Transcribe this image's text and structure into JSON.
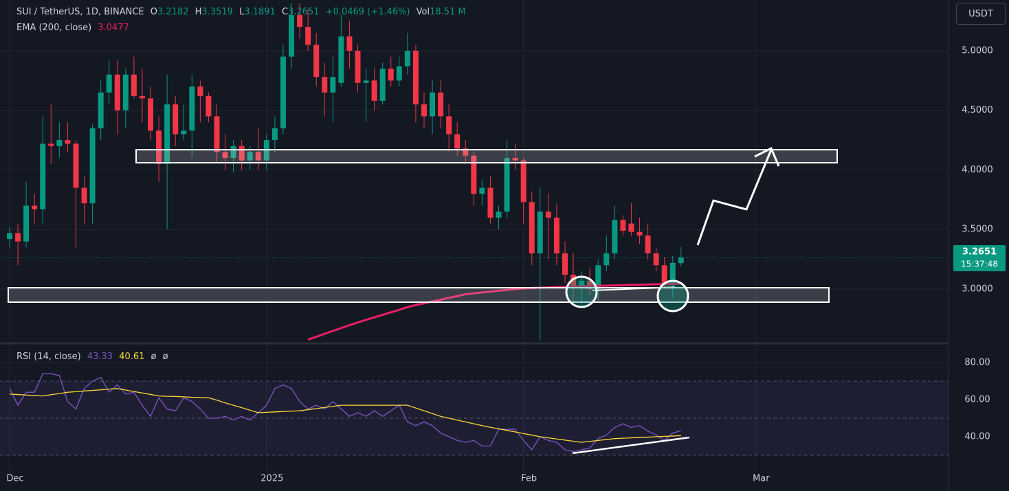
{
  "chart_data": [
    {
      "type": "candlestick",
      "title": "SUI / TetherUS, 1D, BINANCE",
      "ohlc_labels": [
        "O",
        "H",
        "L",
        "C"
      ],
      "change_text": "+0.0469 (+1.46%)",
      "volume_label": "Vol",
      "volume_text": "18.51 M",
      "currency": "USDT",
      "countdown": "15:37:48",
      "up_color": "#089981",
      "down_color": "#f23645",
      "grid": true,
      "x": [
        0,
        1,
        2,
        3,
        4,
        5,
        6,
        7,
        8,
        9,
        10,
        11,
        12,
        13,
        14,
        15,
        16,
        17,
        18,
        19,
        20,
        21,
        22,
        23,
        24,
        25,
        26,
        27,
        28,
        29,
        30,
        31,
        32,
        33,
        34,
        35,
        36,
        37,
        38,
        39,
        40,
        41,
        42,
        43,
        44,
        45,
        46,
        47,
        48,
        49,
        50,
        51,
        52,
        53,
        54,
        55,
        56,
        57,
        58,
        59,
        60,
        61,
        62,
        63,
        64,
        65,
        66,
        67,
        68,
        69,
        70,
        71,
        72,
        73,
        74,
        75,
        76,
        77,
        78,
        79,
        80,
        81
      ],
      "xlim": [
        -1.16,
        113.27
      ],
      "xticks": [
        {
          "value": 0,
          "label": "Dec"
        },
        {
          "value": 31,
          "label": "2025"
        },
        {
          "value": 62,
          "label": "Feb"
        },
        {
          "value": 90,
          "label": "Mar"
        }
      ],
      "open": [
        3.42,
        3.47,
        3.4,
        3.7,
        3.67,
        4.22,
        4.2,
        4.25,
        4.22,
        3.85,
        3.72,
        4.35,
        4.65,
        4.8,
        4.5,
        4.8,
        4.62,
        4.6,
        4.33,
        4.05,
        4.55,
        4.3,
        4.33,
        4.7,
        4.62,
        4.45,
        4.15,
        4.1,
        4.2,
        4.08,
        4.15,
        4.08,
        4.25,
        4.35,
        4.95,
        5.3,
        5.2,
        5.05,
        4.78,
        4.65,
        4.73,
        5.12,
        5.0,
        4.73,
        4.75,
        4.58,
        4.85,
        4.75,
        4.87,
        5.0,
        4.55,
        4.45,
        4.65,
        4.45,
        4.3,
        4.18,
        4.12,
        3.8,
        3.85,
        3.6,
        3.65,
        4.1,
        4.08,
        3.73,
        3.3,
        3.65,
        3.6,
        3.3,
        3.12,
        3.02,
        3.07,
        3.0,
        3.2,
        3.3,
        3.58,
        3.55,
        3.48,
        3.45,
        3.3,
        3.2,
        3.05,
        3.2182
      ],
      "high": [
        3.52,
        3.55,
        3.9,
        3.8,
        4.45,
        4.55,
        4.4,
        4.4,
        4.25,
        3.95,
        4.38,
        4.75,
        4.92,
        4.92,
        4.85,
        4.95,
        4.85,
        4.7,
        4.45,
        4.8,
        4.62,
        4.55,
        4.8,
        4.75,
        4.65,
        4.55,
        4.3,
        4.25,
        4.25,
        4.2,
        4.35,
        4.3,
        4.45,
        5.05,
        5.4,
        5.4,
        5.35,
        5.15,
        4.9,
        4.95,
        5.3,
        5.25,
        5.05,
        4.85,
        4.85,
        4.9,
        4.95,
        4.95,
        5.15,
        5.05,
        4.65,
        4.75,
        4.75,
        4.55,
        4.4,
        4.25,
        4.15,
        3.92,
        3.95,
        3.7,
        4.25,
        4.22,
        4.1,
        3.82,
        3.85,
        3.8,
        3.72,
        3.4,
        3.3,
        3.15,
        3.18,
        3.25,
        3.45,
        3.7,
        3.62,
        3.72,
        3.6,
        3.55,
        3.35,
        3.27,
        3.28,
        3.3519
      ],
      "low": [
        3.35,
        3.2,
        3.35,
        3.55,
        3.55,
        4.05,
        4.1,
        4.15,
        3.35,
        3.55,
        3.55,
        4.25,
        4.55,
        4.3,
        4.35,
        4.6,
        4.4,
        4.25,
        3.9,
        3.5,
        4.2,
        4.25,
        4.1,
        4.4,
        4.4,
        4.05,
        4.0,
        3.98,
        4.0,
        4.0,
        4.0,
        4.0,
        4.15,
        4.3,
        4.85,
        5.1,
        5.0,
        4.7,
        4.45,
        4.4,
        4.7,
        4.85,
        4.65,
        4.4,
        4.5,
        4.55,
        4.7,
        4.7,
        4.8,
        4.4,
        4.35,
        4.3,
        4.35,
        4.15,
        4.12,
        4.05,
        3.7,
        3.7,
        3.55,
        3.5,
        3.6,
        4.0,
        3.55,
        3.2,
        2.57,
        3.25,
        3.2,
        3.05,
        2.9,
        2.88,
        2.95,
        2.9,
        3.15,
        3.25,
        3.45,
        3.45,
        3.38,
        3.25,
        3.15,
        3.0,
        2.93,
        3.1891
      ],
      "close": [
        3.47,
        3.4,
        3.7,
        3.67,
        4.22,
        4.2,
        4.25,
        4.22,
        3.85,
        3.72,
        4.35,
        4.65,
        4.8,
        4.5,
        4.8,
        4.62,
        4.6,
        4.33,
        4.05,
        4.55,
        4.3,
        4.33,
        4.7,
        4.62,
        4.45,
        4.15,
        4.1,
        4.2,
        4.08,
        4.15,
        4.08,
        4.25,
        4.35,
        4.95,
        5.3,
        5.2,
        5.05,
        4.78,
        4.65,
        4.78,
        5.12,
        5.0,
        4.73,
        4.75,
        4.58,
        4.85,
        4.75,
        4.87,
        5.0,
        4.55,
        4.45,
        4.65,
        4.45,
        4.3,
        4.18,
        4.12,
        3.8,
        3.85,
        3.6,
        3.65,
        4.1,
        4.08,
        3.73,
        3.3,
        3.65,
        3.6,
        3.3,
        3.12,
        3.02,
        3.07,
        3.0,
        3.2,
        3.3,
        3.58,
        3.49,
        3.48,
        3.45,
        3.3,
        3.2,
        3.05,
        3.22,
        3.2651
      ],
      "ylim": [
        2.562,
        5.426
      ],
      "yticks": [
        {
          "value": 3.0,
          "label": "3.0000"
        },
        {
          "value": 3.5,
          "label": "3.5000"
        },
        {
          "value": 4.0,
          "label": "4.0000"
        },
        {
          "value": 4.5,
          "label": "4.5000"
        },
        {
          "value": 5.0,
          "label": "5.0000"
        }
      ],
      "series": [
        {
          "name": "EMA (200, close)",
          "color": "#e91e63",
          "values": [
            null,
            null,
            null,
            null,
            null,
            null,
            null,
            null,
            null,
            null,
            null,
            null,
            null,
            null,
            null,
            null,
            null,
            null,
            null,
            null,
            null,
            null,
            null,
            null,
            null,
            null,
            null,
            null,
            null,
            null,
            null,
            null,
            null,
            null,
            null,
            null,
            2.576,
            2.6,
            2.625,
            2.649,
            2.673,
            2.697,
            2.72,
            2.742,
            2.763,
            2.784,
            2.805,
            2.826,
            2.848,
            2.866,
            2.881,
            2.896,
            2.911,
            2.927,
            2.941,
            2.957,
            2.965,
            2.972,
            2.979,
            2.986,
            2.993,
            3.0,
            3.006,
            3.009,
            3.012,
            3.014,
            3.017,
            3.019,
            3.022,
            3.024,
            3.026,
            3.028,
            3.029,
            3.031,
            3.033,
            3.035,
            3.037,
            3.039,
            3.041,
            3.042,
            3.044,
            3.0477
          ]
        }
      ]
    },
    {
      "type": "line",
      "extra_labels": [
        "ø",
        "ø"
      ],
      "ylim": [
        20.74,
        89.63
      ],
      "yticks": [
        {
          "value": 40,
          "label": "40.00"
        },
        {
          "value": 60,
          "label": "60.00"
        },
        {
          "value": 80,
          "label": "80.00"
        }
      ],
      "levels": [
        70,
        50,
        30
      ],
      "band_color": "#7e57c2",
      "series": [
        {
          "name": "RSI (14, close)",
          "color": "#7e57c2",
          "values": [
            66,
            57,
            64,
            64,
            74,
            74,
            73,
            59,
            55,
            66,
            70,
            72,
            64,
            68,
            63,
            64,
            57,
            51,
            61,
            55,
            54,
            61,
            59,
            55,
            50,
            50,
            51,
            49,
            51,
            49,
            53,
            57,
            66,
            68,
            66,
            59,
            55,
            57,
            55,
            59,
            55,
            51,
            53,
            51,
            54,
            51,
            54,
            57,
            48,
            46,
            48,
            46,
            42,
            40,
            38,
            37,
            38,
            35,
            35,
            44,
            44,
            44,
            38,
            33,
            40,
            38,
            37,
            33,
            32,
            33,
            34,
            39,
            41,
            45,
            47,
            45,
            46,
            43,
            41,
            38,
            42,
            43.33
          ]
        },
        {
          "color": "#fdd835",
          "values": [
            63,
            62.75,
            62.5,
            62.25,
            62,
            62.7,
            63.3,
            64,
            64.3,
            64.7,
            65,
            65.3,
            65.7,
            66,
            65.2,
            64.4,
            63.6,
            62.8,
            62,
            61.8,
            61.7,
            61.5,
            61.3,
            61.2,
            61,
            59.7,
            58.3,
            57,
            55.7,
            54.3,
            53,
            53.2,
            53.4,
            53.6,
            53.8,
            54,
            54.6,
            55.2,
            55.8,
            56.4,
            57,
            57,
            57,
            57,
            57,
            57,
            57,
            57,
            57,
            55.5,
            54,
            52.5,
            51,
            50,
            49,
            48,
            47,
            46,
            45.1,
            44.3,
            43.4,
            42.6,
            41.7,
            40.9,
            40,
            39.4,
            38.8,
            38.2,
            37.6,
            37,
            37.5,
            38,
            38.5,
            39,
            39.2,
            39.4,
            39.6,
            39.8,
            40,
            40.2,
            40.4,
            40.61
          ]
        }
      ]
    }
  ]
}
